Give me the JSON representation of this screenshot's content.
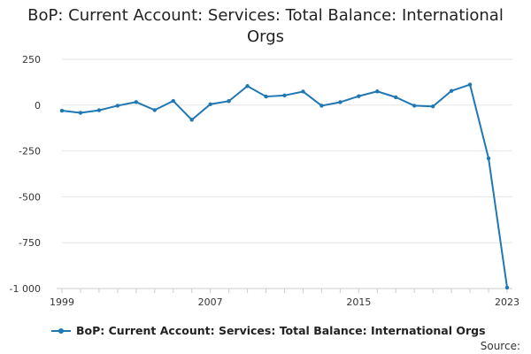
{
  "chart_data": {
    "type": "line",
    "title_lines": [
      "BoP: Current Account: Services: Total Balance: International",
      "Orgs"
    ],
    "x": [
      1999,
      2000,
      2001,
      2002,
      2003,
      2004,
      2005,
      2006,
      2007,
      2008,
      2009,
      2010,
      2011,
      2012,
      2013,
      2014,
      2015,
      2016,
      2017,
      2018,
      2019,
      2020,
      2021,
      2022,
      2023
    ],
    "series": [
      {
        "name": "BoP: Current Account: Services: Total Balance: International Orgs",
        "color": "#1f77b4",
        "values": [
          -30,
          -42,
          -28,
          -3,
          17,
          -27,
          23,
          -80,
          5,
          22,
          104,
          47,
          53,
          74,
          -3,
          16,
          49,
          75,
          43,
          -3,
          -7,
          78,
          112,
          -290,
          -995
        ]
      }
    ],
    "xticks": [
      1999,
      2007,
      2015,
      2023
    ],
    "yticks": [
      250,
      0,
      -250,
      -500,
      -750,
      -1000
    ],
    "ytick_labels": [
      "250",
      "0",
      "-250",
      "-500",
      "-750",
      "-1 000"
    ],
    "ylim": [
      -1000,
      250
    ],
    "grid": true,
    "legend_position": "bottom-left"
  },
  "source_label": "Source:"
}
